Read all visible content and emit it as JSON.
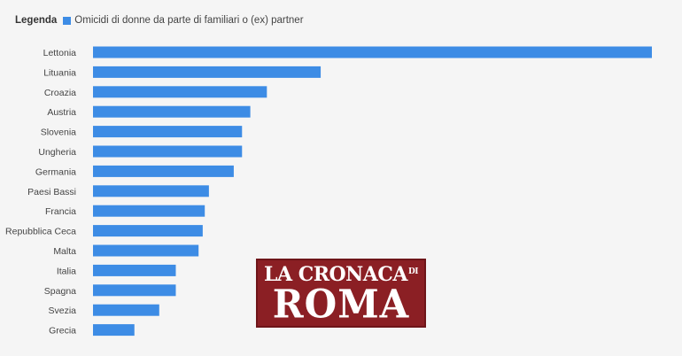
{
  "legend": {
    "title": "Legenda",
    "series_label": "Omicidi di donne da parte di familiari o (ex) partner"
  },
  "colors": {
    "bar": "#3d8ce5",
    "background": "#f5f5f5",
    "label": "#444444",
    "logo_bg": "#8b1f24"
  },
  "chart_data": {
    "type": "bar",
    "orientation": "horizontal",
    "categories": [
      "Lettonia",
      "Lituania",
      "Croazia",
      "Austria",
      "Slovenia",
      "Ungheria",
      "Germania",
      "Paesi Bassi",
      "Francia",
      "Repubblica Ceca",
      "Malta",
      "Italia",
      "Spagna",
      "Svezia",
      "Grecia"
    ],
    "series": [
      {
        "name": "Omicidi di donne da parte di familiari o (ex) partner",
        "values": [
          1.35,
          0.55,
          0.42,
          0.38,
          0.36,
          0.36,
          0.34,
          0.28,
          0.27,
          0.265,
          0.255,
          0.2,
          0.2,
          0.16,
          0.1
        ]
      }
    ],
    "xlim": [
      0,
      1.35
    ],
    "grid": false,
    "legend_position": "top-left"
  },
  "logo": {
    "line1": "LA CRONACA",
    "line1_small": "DI",
    "line2": "ROMA"
  }
}
